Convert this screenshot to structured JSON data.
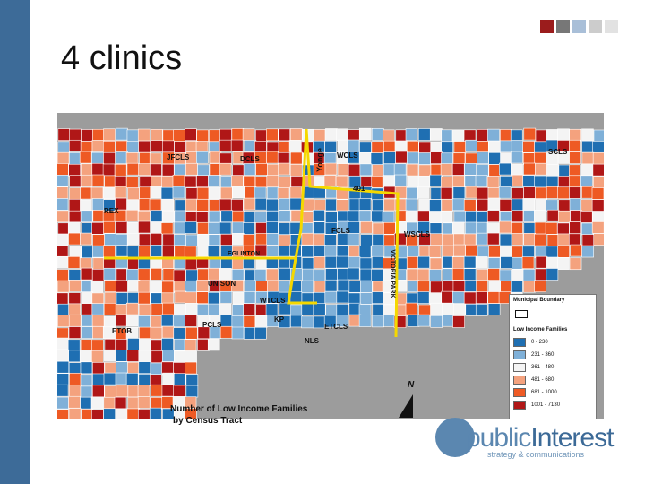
{
  "slide": {
    "title": "4 clinics",
    "accent_squares": [
      "#9b1c1c",
      "#777777",
      "#a9bfd8",
      "#cccccc",
      "#e2e2e2"
    ]
  },
  "map": {
    "labels": {
      "jfcls": "JFCLS",
      "dcls": "DCLS",
      "yonge": "Yonge",
      "wcls": "WCLS",
      "scls": "SCLS",
      "hwy401": "401",
      "rex": "REX",
      "fcls": "FCLS",
      "wscls": "WSCLS",
      "eglinton": "EGLINTON",
      "victoria_park": "VICTORIA PARK",
      "unison": "UNISON",
      "wtcls": "WTCLS",
      "etob": "ETOB",
      "pcls": "PCLS",
      "kp": "KP",
      "etcls": "ETCLS",
      "nls": "NLS"
    },
    "caption_line1": "Number of Low Income Families",
    "caption_line2": "by Census Tract",
    "north_label": "N",
    "legend": {
      "boundary_title": "Municipal Boundary",
      "families_title": "Low Income Families",
      "classes": [
        {
          "range": "0 - 230",
          "color": "#1f6fb2"
        },
        {
          "range": "231 - 360",
          "color": "#7fb0d8"
        },
        {
          "range": "361 - 480",
          "color": "#f4f4f4"
        },
        {
          "range": "481 - 680",
          "color": "#f4a27e"
        },
        {
          "range": "681 - 1000",
          "color": "#ee5a24"
        },
        {
          "range": "1001 - 7130",
          "color": "#b01717"
        }
      ]
    }
  },
  "logo": {
    "word_public": "public",
    "word_interest": "Interest",
    "tagline": "strategy & communications"
  }
}
